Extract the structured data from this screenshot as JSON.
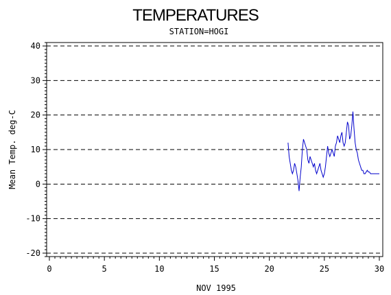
{
  "chart_data": {
    "type": "line",
    "title": "TEMPERATURES",
    "subtitle": "STATION=HOGI",
    "xlabel": "NOV 1995",
    "ylabel": "Mean Temp. deg-C",
    "xlim": [
      0,
      30
    ],
    "ylim": [
      -21,
      41
    ],
    "xticks": [
      0,
      5,
      10,
      15,
      20,
      25,
      30
    ],
    "yticks": [
      -20,
      -10,
      0,
      10,
      20,
      30,
      40
    ],
    "grid": "horizontal-dashed",
    "line_color": "#0000cc",
    "series": [
      {
        "x": [
          21.7,
          21.8,
          21.9,
          22.0,
          22.1,
          22.2,
          22.3,
          22.4,
          22.5,
          22.6,
          22.7,
          22.8,
          22.9,
          23.0,
          23.1,
          23.2,
          23.3,
          23.4,
          23.5,
          23.6,
          23.7,
          23.8,
          23.9,
          24.0,
          24.1,
          24.2,
          24.3,
          24.4,
          24.5,
          24.6,
          24.7,
          24.8,
          24.9,
          25.0,
          25.1,
          25.2,
          25.3,
          25.4,
          25.5,
          25.6,
          25.7,
          25.8,
          25.9,
          26.0,
          26.1,
          26.2,
          26.3,
          26.4,
          26.5,
          26.6,
          26.7,
          26.8,
          26.9,
          27.0,
          27.1,
          27.2,
          27.3,
          27.4,
          27.5,
          27.6,
          27.7,
          27.8,
          27.9,
          28.0,
          28.1,
          28.2,
          28.3,
          28.4,
          28.5,
          28.6,
          28.7,
          28.8,
          28.9,
          29.0,
          29.1,
          29.2,
          29.3,
          29.4,
          29.5,
          29.6,
          29.7,
          29.8,
          29.9,
          30.0
        ],
        "values": [
          12,
          8,
          6,
          4,
          3,
          4,
          6,
          5,
          3,
          1,
          -2,
          2,
          5,
          10,
          13,
          12,
          11,
          10,
          7,
          6,
          8,
          7,
          6,
          5,
          6,
          4,
          3,
          4,
          5,
          6,
          4,
          3,
          2,
          3,
          5,
          8,
          11,
          9,
          8,
          9,
          10,
          9,
          8,
          11,
          12,
          14,
          13,
          12,
          14,
          15,
          12,
          11,
          12,
          15,
          18,
          17,
          13,
          14,
          17,
          21,
          16,
          12,
          10,
          9,
          7,
          6,
          5,
          4,
          4,
          3,
          3,
          3.5,
          4,
          3.5,
          3.5,
          3,
          3,
          3,
          3,
          3,
          3,
          3,
          3,
          3
        ]
      }
    ]
  }
}
